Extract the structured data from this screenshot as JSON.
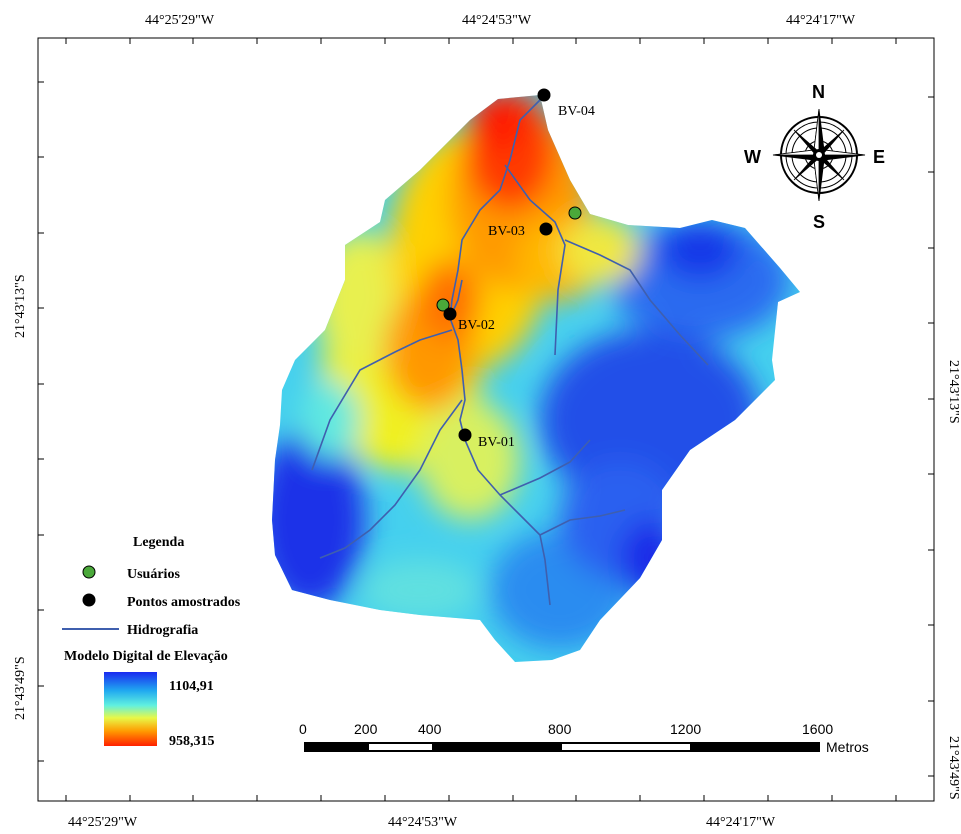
{
  "coords": {
    "top": [
      "44°25'29\"W",
      "44°24'53\"W",
      "44°24'17\"W"
    ],
    "bottom": [
      "44°25'29\"W",
      "44°24'53\"W",
      "44°24'17\"W"
    ],
    "left": [
      "21°43'13\"S",
      "21°43'49\"S"
    ],
    "right": [
      "21°43'13\"S",
      "21°43'49\"S"
    ]
  },
  "points": [
    {
      "id": "BV-04",
      "type": "sample"
    },
    {
      "id": "BV-03",
      "type": "sample"
    },
    {
      "id": "BV-02",
      "type": "sample"
    },
    {
      "id": "BV-01",
      "type": "sample"
    }
  ],
  "compass": {
    "n": "N",
    "s": "S",
    "e": "E",
    "w": "W"
  },
  "legend": {
    "title": "Legenda",
    "users": "Usuários",
    "samples": "Pontos amostrados",
    "hydro": "Hidrografia",
    "dem_title": "Modelo Digital de Elevação",
    "dem_max": "1104,91",
    "dem_min": "958,315"
  },
  "scale": {
    "ticks": [
      "0",
      "200",
      "400",
      "800",
      "1200",
      "1600"
    ],
    "unit": "Metros"
  },
  "colors": {
    "hydro": "#3f5fae",
    "user_point": "#4aa83a",
    "sample_point": "#000000"
  }
}
